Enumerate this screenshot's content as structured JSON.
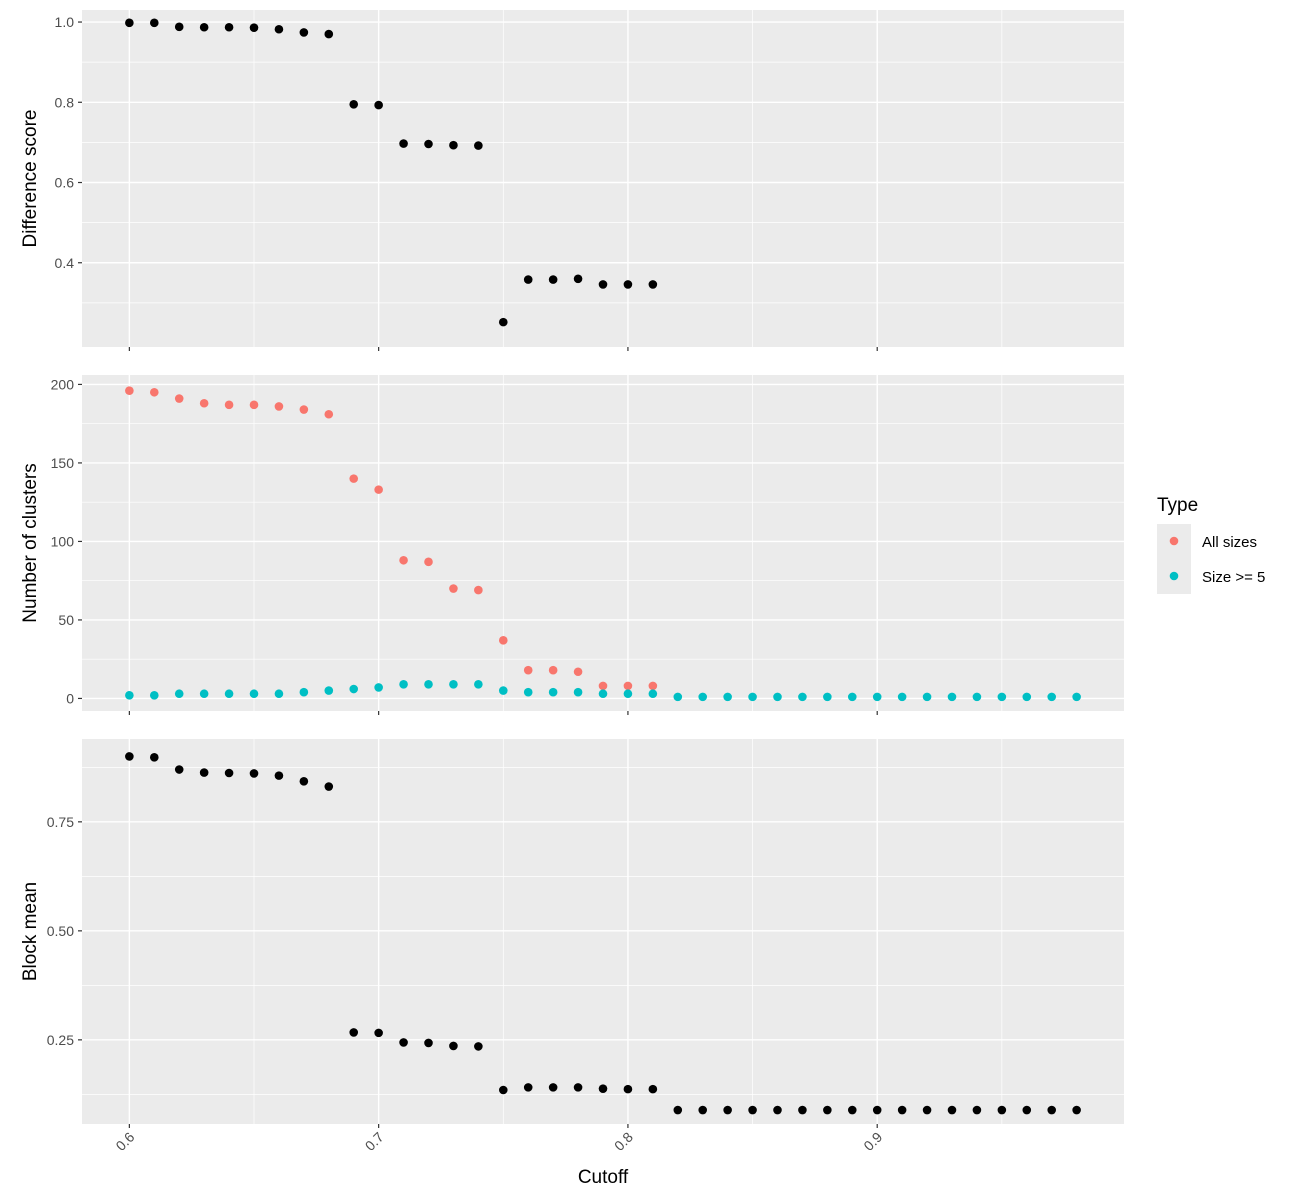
{
  "chart_data": {
    "type": "scatter",
    "xlabel": "Cutoff",
    "x_ticks": [
      0.6,
      0.7,
      0.8,
      0.9
    ],
    "x_tick_labels": [
      "0.6",
      "0.7",
      "0.8",
      "0.9"
    ],
    "xlim": [
      0.581,
      0.999
    ],
    "background": "#ebebeb",
    "grid": true,
    "panels": [
      {
        "ylabel": "Difference score",
        "ylim": [
          0.19,
          1.03
        ],
        "y_ticks": [
          0.4,
          0.6,
          0.8,
          1.0
        ],
        "y_tick_labels": [
          "0.4",
          "0.6",
          "0.8",
          "1.0"
        ],
        "series": [
          {
            "color": "#000000",
            "x": [
              0.6,
              0.61,
              0.62,
              0.63,
              0.64,
              0.65,
              0.66,
              0.67,
              0.68,
              0.69,
              0.7,
              0.71,
              0.72,
              0.73,
              0.74,
              0.75,
              0.76,
              0.77,
              0.78,
              0.79,
              0.8,
              0.81
            ],
            "y": [
              0.998,
              0.998,
              0.988,
              0.987,
              0.987,
              0.986,
              0.982,
              0.974,
              0.97,
              0.795,
              0.793,
              0.697,
              0.696,
              0.693,
              0.692,
              0.252,
              0.358,
              0.358,
              0.36,
              0.346,
              0.346,
              0.346
            ]
          }
        ]
      },
      {
        "ylabel": "Number of clusters",
        "ylim": [
          -8,
          206
        ],
        "y_ticks": [
          0,
          50,
          100,
          150,
          200
        ],
        "y_tick_labels": [
          "0",
          "50",
          "100",
          "150",
          "200"
        ],
        "series": [
          {
            "name": "All sizes",
            "color": "#f8766d",
            "x": [
              0.6,
              0.61,
              0.62,
              0.63,
              0.64,
              0.65,
              0.66,
              0.67,
              0.68,
              0.69,
              0.7,
              0.71,
              0.72,
              0.73,
              0.74,
              0.75,
              0.76,
              0.77,
              0.78,
              0.79,
              0.8,
              0.81
            ],
            "y": [
              196,
              195,
              191,
              188,
              187,
              187,
              186,
              184,
              181,
              140,
              133,
              88,
              87,
              70,
              69,
              37,
              18,
              18,
              17,
              8,
              8,
              8
            ]
          },
          {
            "name": "Size >= 5",
            "color": "#00bfc4",
            "x": [
              0.6,
              0.61,
              0.62,
              0.63,
              0.64,
              0.65,
              0.66,
              0.67,
              0.68,
              0.69,
              0.7,
              0.71,
              0.72,
              0.73,
              0.74,
              0.75,
              0.76,
              0.77,
              0.78,
              0.79,
              0.8,
              0.81,
              0.82,
              0.83,
              0.84,
              0.85,
              0.86,
              0.87,
              0.88,
              0.89,
              0.9,
              0.91,
              0.92,
              0.93,
              0.94,
              0.95,
              0.96,
              0.97,
              0.98
            ],
            "y": [
              2,
              2,
              3,
              3,
              3,
              3,
              3,
              4,
              5,
              6,
              7,
              9,
              9,
              9,
              9,
              5,
              4,
              4,
              4,
              3,
              3,
              3,
              1,
              1,
              1,
              1,
              1,
              1,
              1,
              1,
              1,
              1,
              1,
              1,
              1,
              1,
              1,
              1,
              1
            ]
          }
        ]
      },
      {
        "ylabel": "Block mean",
        "ylim": [
          0.057,
          0.94
        ],
        "y_ticks": [
          0.25,
          0.5,
          0.75
        ],
        "y_tick_labels": [
          "0.25",
          "0.50",
          "0.75"
        ],
        "series": [
          {
            "color": "#000000",
            "x": [
              0.6,
              0.61,
              0.62,
              0.63,
              0.64,
              0.65,
              0.66,
              0.67,
              0.68,
              0.69,
              0.7,
              0.71,
              0.72,
              0.73,
              0.74,
              0.75,
              0.76,
              0.77,
              0.78,
              0.79,
              0.8,
              0.81,
              0.82,
              0.83,
              0.84,
              0.85,
              0.86,
              0.87,
              0.88,
              0.89,
              0.9,
              0.91,
              0.92,
              0.93,
              0.94,
              0.95,
              0.96,
              0.97,
              0.98
            ],
            "y": [
              0.9,
              0.898,
              0.87,
              0.863,
              0.862,
              0.861,
              0.856,
              0.843,
              0.831,
              0.267,
              0.266,
              0.244,
              0.243,
              0.236,
              0.235,
              0.135,
              0.141,
              0.141,
              0.141,
              0.138,
              0.137,
              0.137,
              0.089,
              0.089,
              0.089,
              0.089,
              0.089,
              0.089,
              0.089,
              0.089,
              0.089,
              0.089,
              0.089,
              0.089,
              0.089,
              0.089,
              0.089,
              0.089,
              0.089
            ]
          }
        ]
      }
    ],
    "legend": {
      "title": "Type",
      "position": "right",
      "entries": [
        {
          "label": "All sizes",
          "color": "#f8766d"
        },
        {
          "label": "Size >= 5",
          "color": "#00bfc4"
        }
      ]
    }
  }
}
